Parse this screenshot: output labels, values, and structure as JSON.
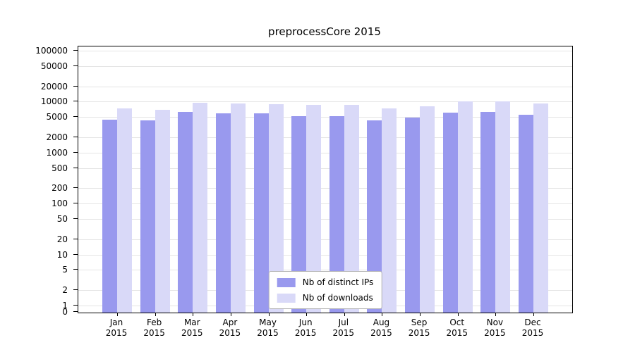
{
  "chart_data": {
    "type": "bar",
    "title": "preprocessCore 2015",
    "xlabel": "",
    "ylabel": "",
    "yscale": "log-like",
    "ylim": [
      0,
      100000
    ],
    "grid": true,
    "legend_position": "bottom-center-inside",
    "categories": [
      "Jan",
      "Feb",
      "Mar",
      "Apr",
      "May",
      "Jun",
      "Jul",
      "Aug",
      "Sep",
      "Oct",
      "Nov",
      "Dec"
    ],
    "category_year": "2015",
    "yticks": [
      0,
      1,
      2,
      5,
      10,
      20,
      50,
      100,
      200,
      500,
      1000,
      2000,
      5000,
      10000,
      20000,
      50000,
      100000
    ],
    "series": [
      {
        "name": "Nb of distinct IPs",
        "color": "#9999ee",
        "values": [
          4600,
          4400,
          6400,
          6100,
          6000,
          5400,
          5300,
          4500,
          5000,
          6200,
          6400,
          5700
        ]
      },
      {
        "name": "Nb of downloads",
        "color": "#d9d9f8",
        "values": [
          7700,
          7200,
          9800,
          9500,
          9300,
          8900,
          8800,
          7600,
          8300,
          10500,
          10600,
          9400
        ]
      }
    ]
  }
}
